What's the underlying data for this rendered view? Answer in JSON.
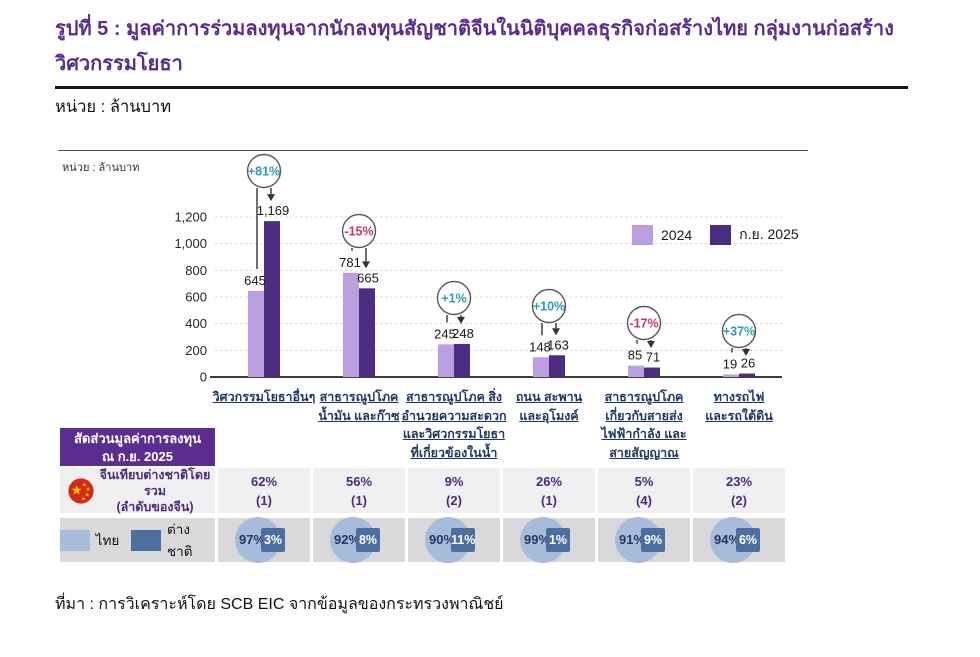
{
  "title": "รูปที่ 5 : มูลค่าการร่วมลงทุนจากนักลงทุนสัญชาติจีนในนิติบุคคลธุรกิจก่อสร้างไทย กลุ่มงานก่อสร้างวิศวกรรมโยธา",
  "unit": "หน่วย : ล้านบาท",
  "source": "ที่มา : การวิเคราะห์โดย SCB EIC จากข้อมูลของกระทรวงพาณิชย์",
  "colors": {
    "accent_purple": "#5b2d8e",
    "bar_2024": "#bb9fe0",
    "bar_2025": "#4c2d82",
    "positive_change": "#2e9ab9",
    "negative_change": "#c9356b",
    "thai_blue": "#a7bbda",
    "foreign_blue": "#4c6f9f",
    "grid": "#d8d8d8"
  },
  "chart_data": {
    "type": "bar",
    "inner_unit": "หน่วย : ล้านบาท",
    "ylim": [
      0,
      1200
    ],
    "yticks": [
      0,
      200,
      400,
      600,
      800,
      1000,
      1200
    ],
    "grid": "horizontal-dashed",
    "legend_position": "top-right",
    "categories": [
      "วิศวกรรมโยธาอื่นๆ",
      "สาธารณูปโภค น้ำมัน และก๊าซ",
      "สาธารณูปโภค สิ่งอำนวยความสะดวก และวิศวกรรมโยธา ที่เกี่ยวข้องในน้ำ",
      "ถนน สะพาน และอุโมงค์",
      "สาธารณูปโภค เกี่ยวกับสายส่ง ไฟฟ้ากำลัง และสายสัญญาณ",
      "ทางรถไฟ และรถใต้ดิน"
    ],
    "category_label_lines": [
      [
        "วิศวกรรมโยธาอื่นๆ"
      ],
      [
        "สาธารณูปโภค",
        "น้ำมัน และก๊าซ"
      ],
      [
        "สาธารณูปโภค สิ่ง",
        "อำนวยความสะดวก",
        "และวิศวกรรมโยธา",
        "ที่เกี่ยวข้องในน้ำ"
      ],
      [
        "ถนน สะพาน",
        "และอุโมงค์"
      ],
      [
        "สาธารณูปโภค",
        "เกี่ยวกับสายส่ง",
        "ไฟฟ้ากำลัง และ",
        "สายสัญญาณ"
      ],
      [
        "ทางรถไฟ",
        "และรถใต้ดิน"
      ]
    ],
    "series": [
      {
        "name": "2024",
        "values": [
          645,
          781,
          245,
          148,
          85,
          19
        ]
      },
      {
        "name": "ก.ย. 2025",
        "values": [
          1169,
          665,
          248,
          163,
          71,
          26
        ]
      }
    ],
    "pct_change": [
      "+81%",
      "-15%",
      "+1%",
      "+10%",
      "-17%",
      "+37%"
    ],
    "bubble_y_hint": [
      171,
      231,
      298,
      306,
      323,
      331
    ]
  },
  "table": {
    "header_lines": [
      "สัดส่วนมูลค่าการลงทุน",
      "ณ ก.ย. 2025"
    ],
    "china_row": {
      "label_lines": [
        "จีนเทียบต่างชาติโดยรวม",
        "(ลำดับของจีน)"
      ],
      "share_pct": [
        "62%",
        "56%",
        "9%",
        "26%",
        "5%",
        "23%"
      ],
      "rank": [
        "(1)",
        "(1)",
        "(2)",
        "(1)",
        "(4)",
        "(2)"
      ]
    },
    "split_row": {
      "legend_thai": "ไทย",
      "legend_foreign": "ต่างชาติ",
      "thai_pct": [
        "97%",
        "92%",
        "90%",
        "99%",
        "91%",
        "94%"
      ],
      "foreign_pct": [
        "3%",
        "8%",
        "11%",
        "1%",
        "9%",
        "6%"
      ]
    }
  }
}
